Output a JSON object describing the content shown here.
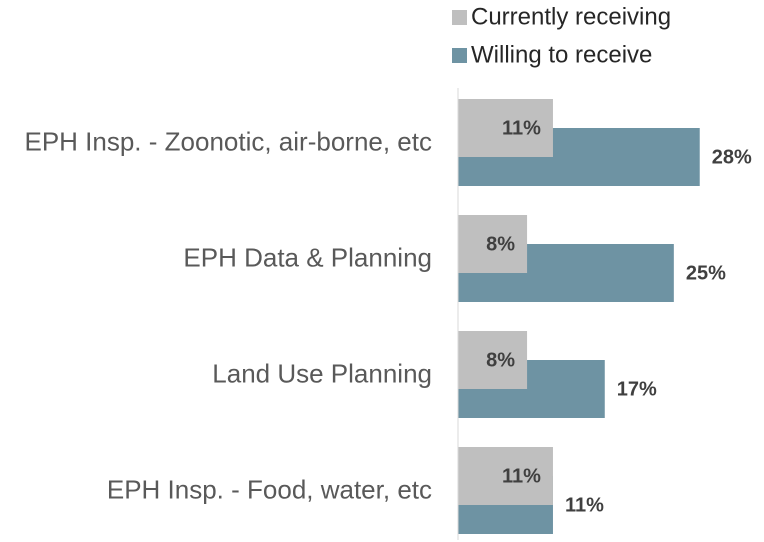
{
  "chart_data": {
    "type": "bar",
    "orientation": "horizontal",
    "categories": [
      "EPH Insp. - Zoonotic, air-borne, etc",
      "EPH Data & Planning",
      "Land Use Planning",
      "EPH Insp. - Food, water, etc"
    ],
    "series": [
      {
        "name": "Currently receiving",
        "color": "#bfbfbf",
        "values": [
          11,
          8,
          8,
          11
        ],
        "value_labels": [
          "11%",
          "8%",
          "8%",
          "11%"
        ]
      },
      {
        "name": "Willing to receive",
        "color": "#6e93a3",
        "values": [
          28,
          25,
          17,
          11
        ],
        "value_labels": [
          "28%",
          "25%",
          "17%",
          "11%"
        ]
      }
    ],
    "xlim": [
      0,
      30
    ]
  }
}
